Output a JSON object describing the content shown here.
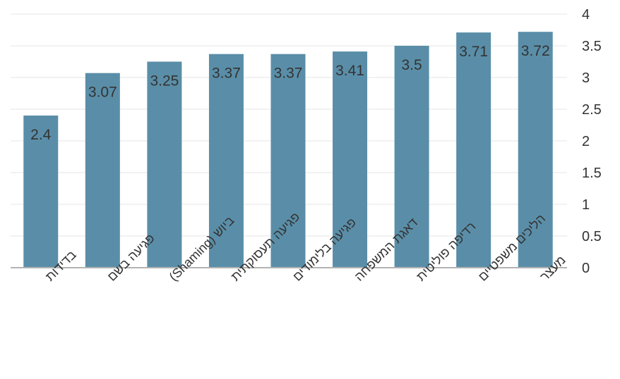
{
  "chart_data": {
    "type": "bar",
    "categories": [
      "בדידות",
      "פגיעה בשם",
      "ביוש (Shaming)",
      "פגיעה תעסוקתית",
      "פגיעה בלימודים",
      "דאגת המשפחה",
      "רדיפה פוליטית",
      "הליכים משפטיים",
      "מעצר"
    ],
    "values": [
      2.4,
      3.07,
      3.25,
      3.37,
      3.37,
      3.41,
      3.5,
      3.71,
      3.72
    ],
    "value_labels": [
      "2.4",
      "3.07",
      "3.25",
      "3.37",
      "3.37",
      "3.41",
      "3.5",
      "3.71",
      "3.72"
    ],
    "title": "",
    "xlabel": "",
    "ylabel": "",
    "ylim": [
      0,
      4
    ],
    "yticks": [
      "0",
      "0.5",
      "1",
      "1.5",
      "2",
      "2.5",
      "3",
      "3.5",
      "4"
    ],
    "y_axis_side": "right",
    "grid": true,
    "legend": "none",
    "colors": {
      "bar": "#5a8ea8",
      "grid": "#e6e6e6",
      "axis": "#b3b3b3",
      "text": "#333333"
    }
  }
}
